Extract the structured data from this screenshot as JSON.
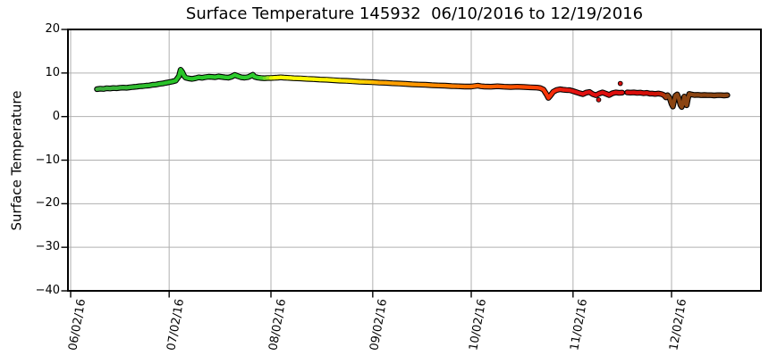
{
  "chart_data": {
    "type": "line",
    "title": "Surface Temperature 145932  06/10/2016 to 12/19/2016",
    "xlabel": "",
    "ylabel": "Surface Temperature",
    "ylim": [
      -40,
      20
    ],
    "yticks": [
      {
        "label": "20",
        "value": 20
      },
      {
        "label": "10",
        "value": 10
      },
      {
        "label": "0",
        "value": 0
      },
      {
        "label": "−10",
        "value": -10
      },
      {
        "label": "−20",
        "value": -20
      },
      {
        "label": "−30",
        "value": -30
      },
      {
        "label": "−40",
        "value": -40
      }
    ],
    "xticks": [
      {
        "label": "06/02/16",
        "day": 0
      },
      {
        "label": "07/02/16",
        "day": 30
      },
      {
        "label": "08/02/16",
        "day": 61
      },
      {
        "label": "09/02/16",
        "day": 92
      },
      {
        "label": "10/02/16",
        "day": 122
      },
      {
        "label": "11/02/16",
        "day": 153
      },
      {
        "label": "12/02/16",
        "day": 183
      }
    ],
    "xlim_days": [
      -0.82,
      210.23
    ],
    "x_day_reference": "days after 06/02/2016",
    "date_range": {
      "start": "06/10/2016",
      "end": "12/19/2016"
    },
    "grid": true,
    "grid_color": "#b0b0b0",
    "spine_color": "#000000",
    "outline_color": "#000000",
    "color_stops": [
      [
        8,
        "#3FAE3F"
      ],
      [
        20,
        "#31BC31"
      ],
      [
        33,
        "#27C427"
      ],
      [
        45,
        "#2BCB2B"
      ],
      [
        58,
        "#2ECC2E"
      ],
      [
        60.5,
        "#9FE41C"
      ],
      [
        62,
        "#FFFF00"
      ],
      [
        80,
        "#FFF200"
      ],
      [
        90,
        "#FFD000"
      ],
      [
        95,
        "#FFA500"
      ],
      [
        105,
        "#FF9900"
      ],
      [
        115,
        "#FF8400"
      ],
      [
        125,
        "#FF6A00"
      ],
      [
        135,
        "#FF5300"
      ],
      [
        143,
        "#FB3E05"
      ],
      [
        150,
        "#EE1E0E"
      ],
      [
        155,
        "#E21111"
      ],
      [
        165,
        "#DD0E0E"
      ],
      [
        172,
        "#DB0D0B"
      ],
      [
        179,
        "#D01005"
      ],
      [
        181,
        "#B03508"
      ],
      [
        182.2,
        "#8B4513"
      ],
      [
        200,
        "#8B4513"
      ]
    ],
    "segments": [
      {
        "points": [
          [
            8,
            6.3
          ],
          [
            9,
            6.4
          ],
          [
            10,
            6.35
          ],
          [
            11,
            6.5
          ],
          [
            12,
            6.45
          ],
          [
            13,
            6.55
          ],
          [
            14,
            6.5
          ],
          [
            15,
            6.6
          ],
          [
            16,
            6.65
          ],
          [
            17,
            6.6
          ],
          [
            18,
            6.7
          ],
          [
            19,
            6.8
          ],
          [
            20,
            6.85
          ],
          [
            21,
            6.95
          ],
          [
            22,
            7.0
          ],
          [
            23,
            7.1
          ],
          [
            24,
            7.15
          ],
          [
            25,
            7.3
          ],
          [
            26,
            7.35
          ],
          [
            27,
            7.5
          ],
          [
            28,
            7.6
          ],
          [
            29,
            7.75
          ],
          [
            30,
            7.9
          ],
          [
            31,
            8.05
          ],
          [
            32,
            8.25
          ],
          [
            33,
            9.3
          ],
          [
            33.5,
            10.75
          ],
          [
            34,
            10.2
          ],
          [
            34.5,
            9.4
          ],
          [
            35,
            8.95
          ],
          [
            36,
            8.75
          ],
          [
            37,
            8.65
          ],
          [
            38,
            8.8
          ],
          [
            39,
            9.0
          ],
          [
            40,
            8.9
          ],
          [
            41,
            9.05
          ],
          [
            42,
            9.15
          ],
          [
            43,
            9.1
          ],
          [
            44,
            9.05
          ],
          [
            45,
            9.2
          ],
          [
            46,
            9.1
          ],
          [
            47,
            9.0
          ],
          [
            48,
            8.95
          ],
          [
            49,
            9.15
          ],
          [
            50,
            9.55
          ],
          [
            51,
            9.25
          ],
          [
            52,
            9.0
          ],
          [
            53,
            8.95
          ],
          [
            54,
            9.05
          ],
          [
            55,
            9.4
          ],
          [
            55.5,
            9.6
          ],
          [
            56,
            9.15
          ],
          [
            57,
            8.95
          ],
          [
            58,
            8.85
          ],
          [
            59,
            8.8
          ],
          [
            60,
            8.85
          ],
          [
            61,
            8.85
          ],
          [
            62,
            8.9
          ],
          [
            63,
            8.95
          ],
          [
            64,
            9.0
          ],
          [
            65,
            8.95
          ],
          [
            66,
            8.9
          ],
          [
            67,
            8.85
          ],
          [
            68,
            8.8
          ],
          [
            70,
            8.75
          ],
          [
            72,
            8.65
          ],
          [
            74,
            8.6
          ],
          [
            76,
            8.5
          ],
          [
            78,
            8.45
          ],
          [
            80,
            8.35
          ],
          [
            82,
            8.25
          ],
          [
            84,
            8.2
          ],
          [
            86,
            8.1
          ],
          [
            88,
            8.0
          ],
          [
            90,
            7.95
          ],
          [
            92,
            7.9
          ],
          [
            94,
            7.8
          ],
          [
            96,
            7.75
          ],
          [
            98,
            7.65
          ],
          [
            100,
            7.6
          ],
          [
            102,
            7.5
          ],
          [
            104,
            7.4
          ],
          [
            106,
            7.35
          ],
          [
            108,
            7.3
          ],
          [
            110,
            7.2
          ],
          [
            112,
            7.15
          ],
          [
            114,
            7.1
          ],
          [
            116,
            7.0
          ],
          [
            118,
            6.95
          ],
          [
            120,
            6.9
          ],
          [
            122,
            6.9
          ],
          [
            123,
            7.0
          ],
          [
            124,
            7.1
          ],
          [
            125,
            6.95
          ],
          [
            126,
            6.9
          ],
          [
            128,
            6.85
          ],
          [
            130,
            6.95
          ],
          [
            132,
            6.85
          ],
          [
            134,
            6.8
          ],
          [
            136,
            6.85
          ],
          [
            138,
            6.8
          ],
          [
            140,
            6.7
          ],
          [
            142,
            6.65
          ],
          [
            143,
            6.55
          ],
          [
            144,
            6.2
          ],
          [
            145,
            5.0
          ],
          [
            145.5,
            4.3
          ],
          [
            146,
            4.7
          ],
          [
            147,
            5.7
          ],
          [
            148,
            6.1
          ],
          [
            149,
            6.25
          ],
          [
            150,
            6.15
          ],
          [
            151,
            6.1
          ],
          [
            152,
            6.05
          ],
          [
            153,
            5.85
          ],
          [
            154,
            5.6
          ],
          [
            155,
            5.35
          ],
          [
            156,
            5.15
          ],
          [
            157,
            5.5
          ],
          [
            158,
            5.65
          ],
          [
            159,
            5.15
          ],
          [
            160,
            4.9
          ],
          [
            161,
            5.3
          ],
          [
            162,
            5.55
          ],
          [
            163,
            5.25
          ],
          [
            164,
            4.95
          ],
          [
            165,
            5.35
          ],
          [
            166,
            5.55
          ],
          [
            167,
            5.45
          ],
          [
            168,
            5.5
          ]
        ]
      },
      {
        "points": [
          [
            169.5,
            5.55
          ],
          [
            170.5,
            5.5
          ],
          [
            171.5,
            5.55
          ],
          [
            172.5,
            5.45
          ],
          [
            173.5,
            5.5
          ],
          [
            174.5,
            5.35
          ],
          [
            175.5,
            5.45
          ],
          [
            176.5,
            5.25
          ],
          [
            177,
            5.3
          ],
          [
            178,
            5.2
          ],
          [
            179,
            5.3
          ],
          [
            180,
            5.15
          ],
          [
            180.7,
            4.9
          ],
          [
            181.3,
            4.4
          ],
          [
            181.8,
            4.9
          ],
          [
            182.4,
            4.3
          ],
          [
            183,
            2.9
          ],
          [
            183.4,
            2.3
          ],
          [
            183.8,
            3.6
          ],
          [
            184.2,
            4.8
          ],
          [
            184.7,
            5.1
          ],
          [
            185.2,
            4.2
          ],
          [
            185.7,
            2.7
          ],
          [
            186.1,
            2.2
          ],
          [
            186.5,
            3.3
          ],
          [
            186.9,
            4.6
          ],
          [
            187.2,
            3.0
          ],
          [
            187.6,
            2.6
          ],
          [
            188,
            4.2
          ],
          [
            188.4,
            5.2
          ],
          [
            189,
            5.1
          ],
          [
            190,
            4.95
          ],
          [
            191,
            5.0
          ],
          [
            192,
            4.9
          ],
          [
            193,
            4.95
          ],
          [
            194,
            4.9
          ],
          [
            195,
            4.9
          ],
          [
            196,
            4.85
          ],
          [
            197,
            4.9
          ],
          [
            198,
            4.9
          ],
          [
            199,
            4.85
          ],
          [
            200,
            4.9
          ]
        ]
      }
    ],
    "outliers": [
      {
        "day": 167.4,
        "value": 7.6
      },
      {
        "day": 160.8,
        "value": 3.85
      }
    ]
  }
}
